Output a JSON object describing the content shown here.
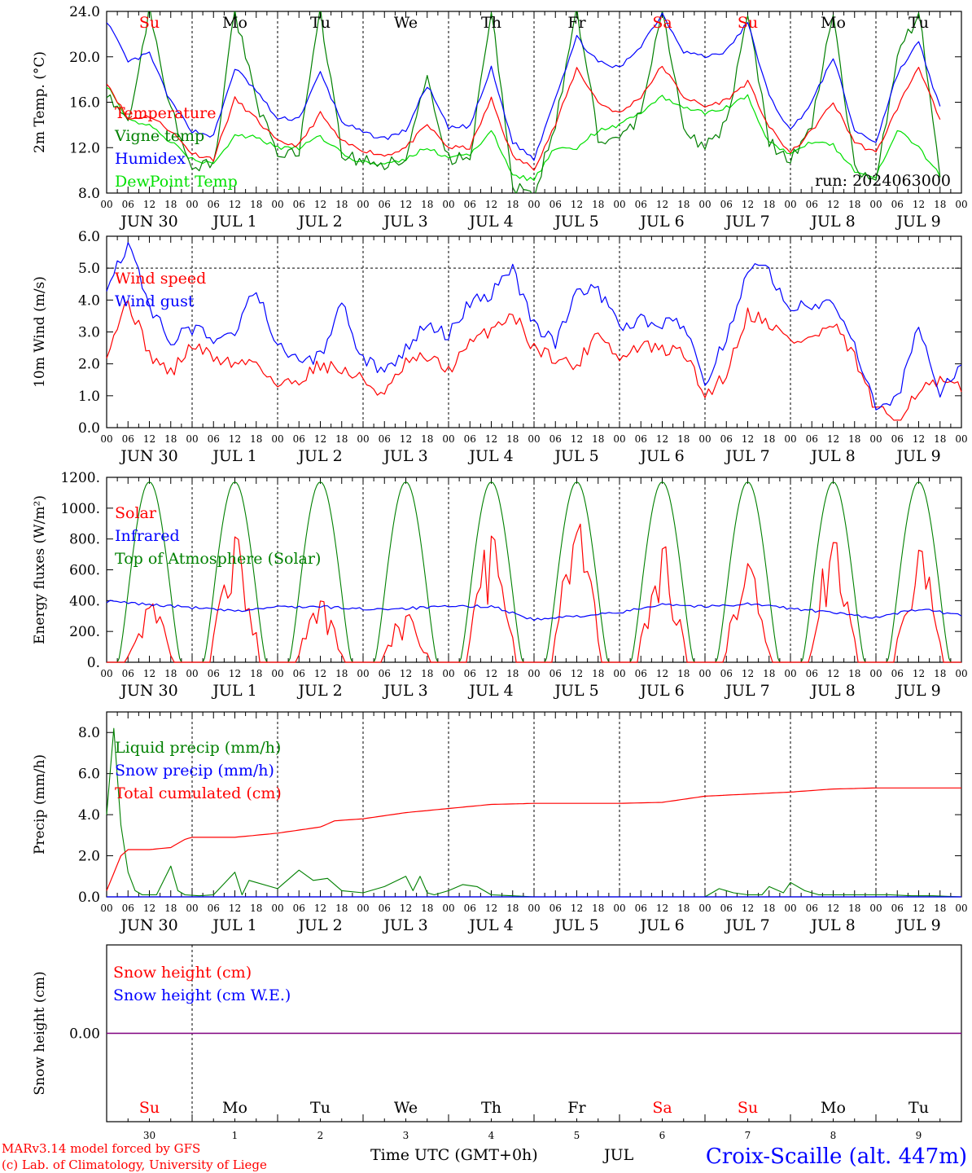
{
  "x_axis": {
    "hour_ticks": [
      "00",
      "06",
      "12",
      "18"
    ],
    "date_labels": [
      "JUN 30",
      "JUL  1",
      "JUL  2",
      "JUL  3",
      "JUL  4",
      "JUL  5",
      "JUL  6",
      "JUL  7",
      "JUL  8",
      "JUL  9"
    ],
    "day_abbrevs": [
      "Su",
      "Mo",
      "Tu",
      "We",
      "Th",
      "Fr",
      "Sa",
      "Su",
      "Mo",
      "Tu"
    ],
    "weekend_flags": [
      true,
      false,
      false,
      false,
      false,
      false,
      true,
      true,
      false,
      false
    ],
    "day_numbers": [
      "30",
      "1",
      "2",
      "3",
      "4",
      "5",
      "6",
      "7",
      "8",
      "9"
    ],
    "start": "2024-06-30 00 UTC",
    "end": "2024-07-10 00 UTC"
  },
  "colors": {
    "red": "#ff0000",
    "green": "#008000",
    "blue": "#0000ff",
    "lightgreen": "#00e000",
    "purple": "#800080",
    "black": "#000000"
  },
  "footer": {
    "model_line": "MARv3.14 model forced by GFS",
    "lab_line": "(c) Lab. of Climatology, University of Liege",
    "time_label": "Time UTC (GMT+0h)",
    "month_label": "JUL",
    "station_label": "Croix-Scaille (alt. 447m)"
  },
  "chart_data": [
    {
      "type": "line",
      "ylabel": "2m Temp. (°C)",
      "ylim": [
        8,
        24
      ],
      "yticks": [
        "8.0",
        "12.0",
        "16.0",
        "20.0",
        "24.0"
      ],
      "annotation": "run: 2024063000",
      "show_day_abbrevs": true,
      "series": [
        {
          "name": "Temperature",
          "color": "red",
          "x": [
            0,
            6,
            12,
            18,
            24,
            30,
            36,
            42,
            48,
            54,
            60,
            66,
            72,
            78,
            84,
            90,
            96,
            102,
            108,
            114,
            120,
            126,
            132,
            138,
            144,
            150,
            156,
            162,
            168,
            174,
            180,
            186,
            192,
            198,
            204,
            210,
            216,
            222,
            228,
            234
          ],
          "y": [
            17.8,
            14.5,
            14.8,
            13.5,
            11.5,
            11.0,
            16.3,
            14.5,
            12.5,
            12.2,
            15.0,
            12.5,
            11.8,
            11.3,
            12.0,
            14.0,
            12.0,
            12.0,
            16.3,
            11.2,
            10.2,
            14.0,
            19.0,
            16.0,
            15.0,
            16.5,
            19.2,
            16.5,
            15.6,
            16.2,
            17.8,
            13.8,
            11.5,
            13.5,
            16.0,
            12.5,
            11.5,
            15.5,
            19.2,
            14.3
          ]
        },
        {
          "name": "Vigne temp",
          "color": "green",
          "x": [
            0,
            6,
            12,
            18,
            24,
            30,
            36,
            42,
            48,
            54,
            60,
            66,
            72,
            78,
            84,
            90,
            96,
            102,
            108,
            114,
            120,
            126,
            132,
            138,
            144,
            150,
            156,
            162,
            168,
            174,
            180,
            186,
            192,
            198,
            204,
            210,
            216,
            222,
            228,
            234
          ],
          "y": [
            17.0,
            14.3,
            24.0,
            15.5,
            10.5,
            10.3,
            24.0,
            16.0,
            11.5,
            11.5,
            24.0,
            11.5,
            10.8,
            10.5,
            11.0,
            18.0,
            11.0,
            11.0,
            24.0,
            8.5,
            8.0,
            14.0,
            24.0,
            13.0,
            12.5,
            15.0,
            24.0,
            13.5,
            12.0,
            14.0,
            24.0,
            12.5,
            11.0,
            14.0,
            24.0,
            10.0,
            9.0,
            20.0,
            24.0,
            9.5
          ]
        },
        {
          "name": "Humidex",
          "color": "blue",
          "x": [
            0,
            6,
            12,
            18,
            24,
            30,
            36,
            42,
            48,
            54,
            60,
            66,
            72,
            78,
            84,
            90,
            96,
            102,
            108,
            114,
            120,
            126,
            132,
            138,
            144,
            150,
            156,
            162,
            168,
            174,
            180,
            186,
            192,
            198,
            204,
            210,
            216,
            222,
            228,
            234
          ],
          "y": [
            23.2,
            19.5,
            20.3,
            16.0,
            13.5,
            13.0,
            19.0,
            17.0,
            14.5,
            14.6,
            18.6,
            14.3,
            13.3,
            12.8,
            13.5,
            17.5,
            13.7,
            13.9,
            19.0,
            12.5,
            11.0,
            16.5,
            21.7,
            19.5,
            19.0,
            21.0,
            23.8,
            20.5,
            20.0,
            20.5,
            23.0,
            16.5,
            13.5,
            16.0,
            20.0,
            13.5,
            12.5,
            18.5,
            21.3,
            15.5
          ]
        },
        {
          "name": "DewPoint Temp",
          "color": "lightgreen",
          "x": [
            0,
            6,
            12,
            18,
            24,
            30,
            36,
            42,
            48,
            54,
            60,
            66,
            72,
            78,
            84,
            90,
            96,
            102,
            108,
            114,
            120,
            126,
            132,
            138,
            144,
            150,
            156,
            162,
            168,
            174,
            180,
            186,
            192,
            198,
            204,
            210,
            216,
            222,
            228,
            234
          ],
          "y": [
            17.5,
            14.5,
            14.0,
            12.5,
            11.0,
            10.5,
            13.0,
            13.0,
            12.0,
            12.0,
            13.0,
            11.5,
            10.7,
            10.5,
            11.0,
            12.0,
            11.0,
            11.5,
            13.5,
            9.5,
            9.2,
            12.0,
            12.0,
            13.5,
            14.0,
            15.0,
            16.5,
            15.5,
            15.0,
            15.5,
            16.5,
            12.5,
            11.5,
            12.5,
            12.2,
            10.0,
            9.5,
            13.5,
            12.0,
            9.5
          ]
        }
      ]
    },
    {
      "type": "line",
      "ylabel": "10m Wind (m/s)",
      "ylim": [
        0,
        6
      ],
      "yticks": [
        "0.0",
        "1.0",
        "2.0",
        "3.0",
        "4.0",
        "5.0",
        "6.0"
      ],
      "reference_line": 5.0,
      "series": [
        {
          "name": "Wind speed",
          "color": "red",
          "x": [
            0,
            6,
            12,
            18,
            24,
            30,
            36,
            42,
            48,
            54,
            60,
            66,
            72,
            78,
            84,
            90,
            96,
            102,
            108,
            114,
            120,
            126,
            132,
            138,
            144,
            150,
            156,
            162,
            168,
            174,
            180,
            186,
            192,
            198,
            204,
            210,
            216,
            222,
            228,
            234,
            240
          ],
          "y": [
            2.4,
            4.0,
            2.3,
            1.7,
            2.6,
            2.2,
            2.0,
            2.1,
            1.3,
            1.5,
            2.0,
            1.8,
            1.5,
            1.0,
            2.0,
            2.2,
            1.8,
            2.6,
            3.1,
            3.6,
            2.5,
            2.2,
            1.9,
            3.1,
            2.1,
            2.6,
            2.4,
            2.4,
            1.0,
            1.7,
            3.6,
            3.3,
            2.7,
            2.8,
            3.2,
            2.2,
            0.5,
            0.3,
            1.2,
            1.4,
            1.2
          ]
        },
        {
          "name": "Wind gust",
          "color": "blue",
          "x": [
            0,
            6,
            12,
            18,
            24,
            30,
            36,
            42,
            48,
            54,
            60,
            66,
            72,
            78,
            84,
            90,
            96,
            102,
            108,
            114,
            120,
            126,
            132,
            138,
            144,
            150,
            156,
            162,
            168,
            174,
            180,
            186,
            192,
            198,
            204,
            210,
            216,
            222,
            228,
            234,
            240
          ],
          "y": [
            4.5,
            5.8,
            3.8,
            2.7,
            3.1,
            2.8,
            3.0,
            4.4,
            2.5,
            2.1,
            2.2,
            3.9,
            2.1,
            1.8,
            2.5,
            3.2,
            2.9,
            3.9,
            4.2,
            4.9,
            3.2,
            2.7,
            4.2,
            4.3,
            3.2,
            3.4,
            3.3,
            3.2,
            1.4,
            2.8,
            5.0,
            4.9,
            3.8,
            3.9,
            4.0,
            2.7,
            0.5,
            0.9,
            3.2,
            1.0,
            2.1
          ]
        }
      ]
    },
    {
      "type": "line",
      "ylabel": "Energy fluxes (W/m²)",
      "ylim": [
        0,
        1200
      ],
      "yticks": [
        "0.",
        "200.",
        "400.",
        "600.",
        "800.",
        "1000.",
        "1200."
      ],
      "series": [
        {
          "name": "Solar",
          "color": "red",
          "daily_peaks": [
            380,
            870,
            430,
            320,
            820,
            910,
            750,
            660,
            820,
            740
          ]
        },
        {
          "name": "Infrared",
          "color": "blue",
          "x": [
            0,
            12,
            24,
            36,
            48,
            60,
            72,
            84,
            96,
            108,
            120,
            132,
            144,
            156,
            168,
            180,
            192,
            204,
            216,
            228,
            240
          ],
          "y": [
            395,
            375,
            355,
            330,
            360,
            360,
            345,
            350,
            360,
            365,
            275,
            300,
            320,
            380,
            360,
            380,
            350,
            320,
            290,
            345,
            305
          ]
        },
        {
          "name": "Top of Atmosphere (Solar)",
          "color": "green",
          "daily_peak": 1170
        }
      ]
    },
    {
      "type": "line",
      "ylabel": "Precip (mm/h)",
      "ylim": [
        0,
        9
      ],
      "yticks": [
        "0.0",
        "2.0",
        "4.0",
        "6.0",
        "8.0"
      ],
      "series": [
        {
          "name": "Liquid precip (mm/h)",
          "color": "green",
          "x": [
            0,
            2,
            4,
            6,
            8,
            10,
            14,
            18,
            20,
            22,
            26,
            30,
            36,
            38,
            40,
            48,
            54,
            58,
            62,
            66,
            72,
            78,
            84,
            86,
            88,
            90,
            92,
            96,
            100,
            104,
            108,
            114,
            120,
            168,
            172,
            176,
            180,
            184,
            186,
            190,
            192,
            196,
            200,
            204,
            210,
            220,
            226,
            232,
            240
          ],
          "y": [
            4.0,
            8.2,
            3.5,
            1.2,
            0.3,
            0.1,
            0.1,
            1.5,
            0.3,
            0.1,
            0.05,
            0.1,
            1.2,
            0.1,
            0.8,
            0.4,
            1.3,
            0.8,
            0.9,
            0.3,
            0.2,
            0.5,
            1.0,
            0.3,
            1.0,
            0.2,
            0.1,
            0.3,
            0.6,
            0.5,
            0.1,
            0.05,
            0.0,
            0.0,
            0.4,
            0.2,
            0.1,
            0.1,
            0.5,
            0.2,
            0.7,
            0.3,
            0.1,
            0.1,
            0.1,
            0.1,
            0.05,
            0.05,
            0.0
          ]
        },
        {
          "name": "Snow precip (mm/h)",
          "color": "blue",
          "x": [
            0,
            240
          ],
          "y": [
            0,
            0
          ]
        },
        {
          "name": "Total cumulated (cm)",
          "color": "red",
          "x": [
            0,
            4,
            6,
            12,
            18,
            22,
            24,
            36,
            48,
            60,
            64,
            72,
            84,
            96,
            108,
            120,
            132,
            144,
            156,
            168,
            180,
            192,
            204,
            216,
            228,
            240
          ],
          "y": [
            0.3,
            2.0,
            2.3,
            2.3,
            2.4,
            2.8,
            2.9,
            2.9,
            3.1,
            3.4,
            3.7,
            3.8,
            4.1,
            4.3,
            4.5,
            4.55,
            4.55,
            4.55,
            4.6,
            4.9,
            5.0,
            5.1,
            5.25,
            5.3,
            5.3,
            5.3
          ]
        }
      ]
    },
    {
      "type": "line",
      "ylabel": "Snow height (cm)",
      "ylim": [
        -1,
        1
      ],
      "yticks": [
        "0.00"
      ],
      "series": [
        {
          "name": "Snow height (cm)",
          "color": "red",
          "x": [
            0,
            240
          ],
          "y": [
            0,
            0
          ]
        },
        {
          "name": "Snow height (cm W.E.)",
          "color": "blue",
          "x": [
            0,
            240
          ],
          "y": [
            0,
            0
          ]
        }
      ]
    }
  ]
}
